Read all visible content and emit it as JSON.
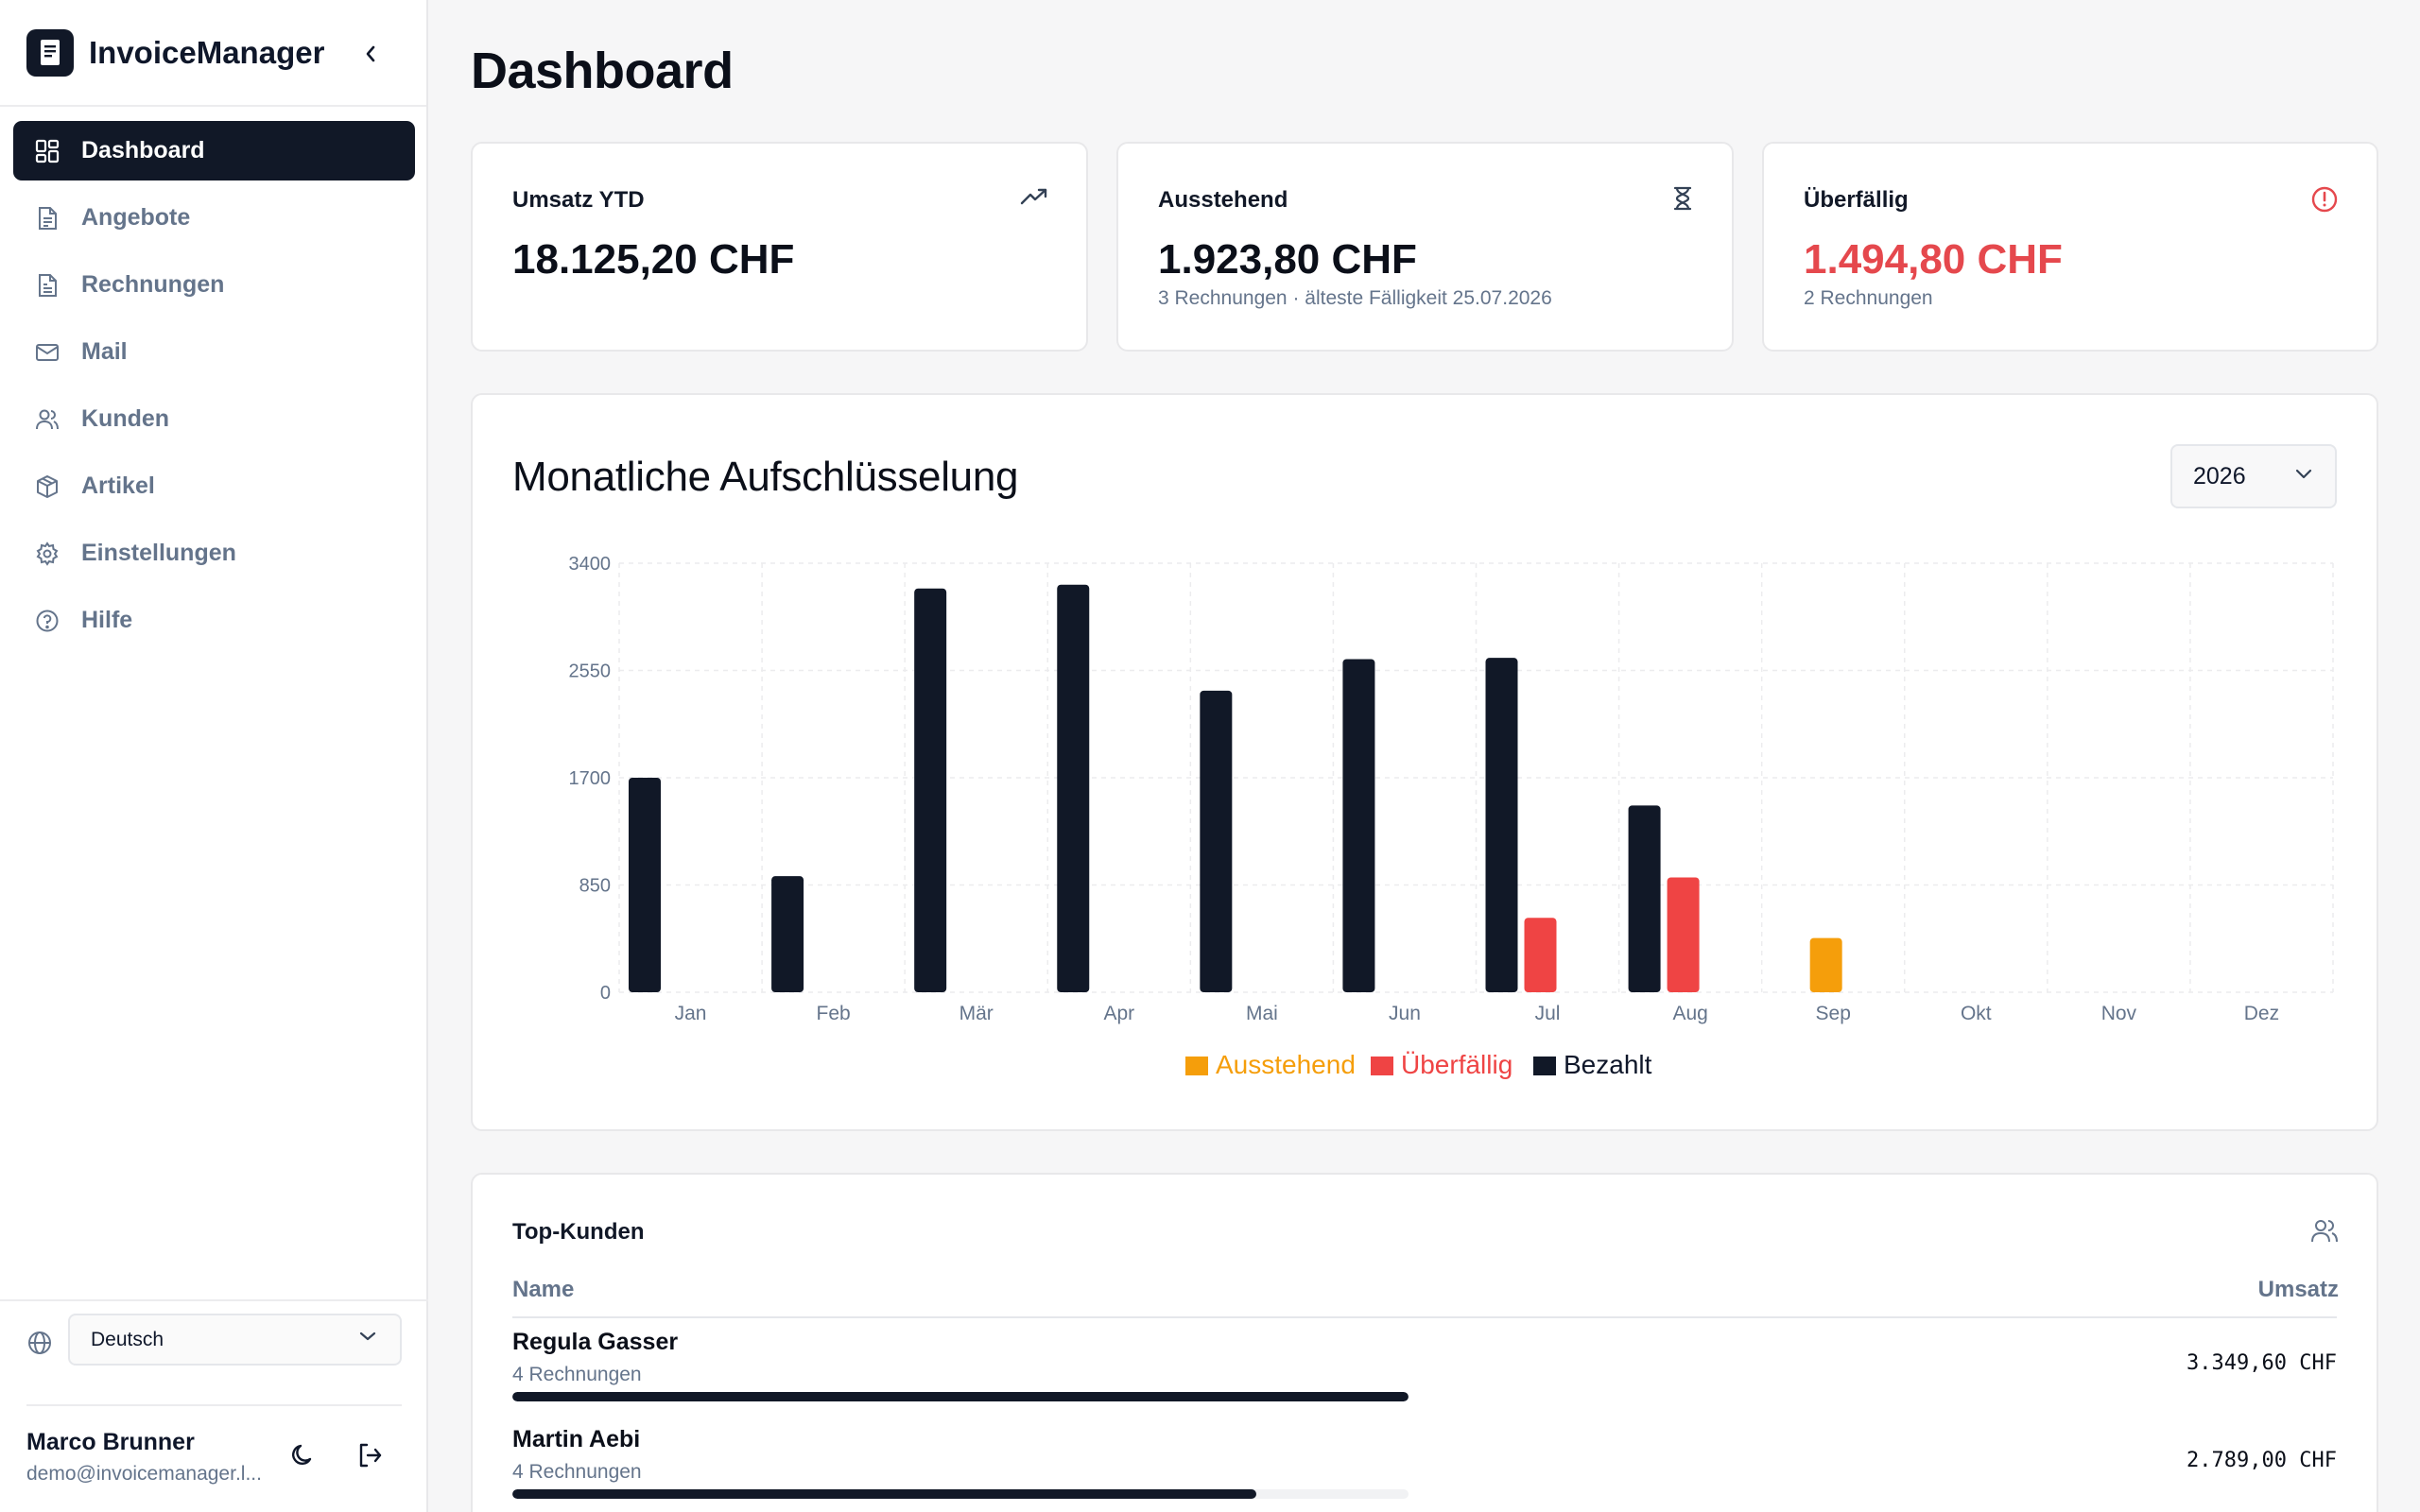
{
  "app": {
    "name": "InvoiceManager"
  },
  "sidebar": {
    "items": [
      {
        "label": "Dashboard",
        "icon": "dashboard-icon",
        "active": true
      },
      {
        "label": "Angebote",
        "icon": "document-icon"
      },
      {
        "label": "Rechnungen",
        "icon": "invoice-icon"
      },
      {
        "label": "Mail",
        "icon": "mail-icon"
      },
      {
        "label": "Kunden",
        "icon": "users-icon"
      },
      {
        "label": "Artikel",
        "icon": "box-icon"
      },
      {
        "label": "Einstellungen",
        "icon": "gear-icon"
      },
      {
        "label": "Hilfe",
        "icon": "help-icon"
      }
    ],
    "language": {
      "selected": "Deutsch"
    },
    "user": {
      "name": "Marco Brunner",
      "email": "demo@invoicemanager.l..."
    }
  },
  "page": {
    "title": "Dashboard"
  },
  "kpis": {
    "revenue": {
      "title": "Umsatz YTD",
      "value": "18.125,20 CHF"
    },
    "pending": {
      "title": "Ausstehend",
      "value": "1.923,80 CHF",
      "sub": "3 Rechnungen · älteste Fälligkeit 25.07.2026"
    },
    "overdue": {
      "title": "Überfällig",
      "value": "1.494,80 CHF",
      "sub": "2 Rechnungen"
    }
  },
  "breakdown": {
    "title": "Monatliche Aufschlüsselung",
    "year": "2026"
  },
  "chart_data": {
    "type": "bar",
    "categories": [
      "Jan",
      "Feb",
      "Mär",
      "Apr",
      "Mai",
      "Jun",
      "Jul",
      "Aug",
      "Sep",
      "Okt",
      "Nov",
      "Dez"
    ],
    "series": [
      {
        "name": "Bezahlt",
        "color": "#111827",
        "values": [
          1700,
          920,
          3200,
          3230,
          2390,
          2640,
          2650,
          1480,
          0,
          0,
          0,
          0
        ]
      },
      {
        "name": "Überfällig",
        "color": "#ef4444",
        "values": [
          0,
          0,
          0,
          0,
          0,
          0,
          590,
          910,
          0,
          0,
          0,
          0
        ]
      },
      {
        "name": "Ausstehend",
        "color": "#f59e0b",
        "values": [
          0,
          0,
          0,
          0,
          0,
          0,
          0,
          0,
          430,
          0,
          0,
          0
        ]
      }
    ],
    "yticks": [
      "0",
      "850",
      "1700",
      "2550",
      "3400"
    ],
    "ylim": [
      0,
      3400
    ],
    "legend_order": [
      "Ausstehend",
      "Überfällig",
      "Bezahlt"
    ],
    "legend_placement": "bottom-center",
    "grid": true
  },
  "top_customers": {
    "title": "Top-Kunden",
    "col_name": "Name",
    "col_revenue": "Umsatz",
    "rows": [
      {
        "name": "Regula Gasser",
        "count": "4 Rechnungen",
        "amount": "3.349,60 CHF",
        "share": 1.0
      },
      {
        "name": "Martin Aebi",
        "count": "4 Rechnungen",
        "amount": "2.789,00 CHF",
        "share": 0.83
      }
    ]
  }
}
